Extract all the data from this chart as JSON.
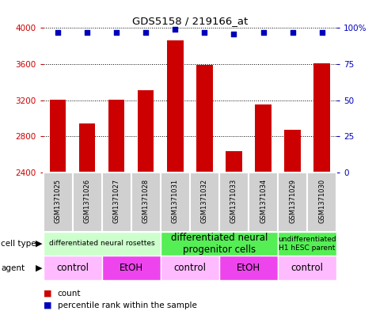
{
  "title": "GDS5158 / 219166_at",
  "samples": [
    "GSM1371025",
    "GSM1371026",
    "GSM1371027",
    "GSM1371028",
    "GSM1371031",
    "GSM1371032",
    "GSM1371033",
    "GSM1371034",
    "GSM1371029",
    "GSM1371030"
  ],
  "counts": [
    3210,
    2940,
    3210,
    3310,
    3860,
    3590,
    2640,
    3150,
    2870,
    3610
  ],
  "percentiles": [
    97,
    97,
    97,
    97,
    99,
    97,
    96,
    97,
    97,
    97
  ],
  "ylim_left": [
    2400,
    4000
  ],
  "ylim_right": [
    0,
    100
  ],
  "yticks_left": [
    2400,
    2800,
    3200,
    3600,
    4000
  ],
  "yticks_right": [
    0,
    25,
    50,
    75,
    100
  ],
  "bar_color": "#CC0000",
  "dot_color": "#0000BB",
  "cell_type_groups": [
    {
      "label": "differentiated neural rosettes",
      "start": 0,
      "end": 4,
      "color": "#ccffcc",
      "fontsize": 6.5
    },
    {
      "label": "differentiated neural\nprogenitor cells",
      "start": 4,
      "end": 8,
      "color": "#55ee55",
      "fontsize": 8.5
    },
    {
      "label": "undifferentiated\nH1 hESC parent",
      "start": 8,
      "end": 10,
      "color": "#55ee55",
      "fontsize": 6.5
    }
  ],
  "agent_groups": [
    {
      "label": "control",
      "start": 0,
      "end": 2,
      "color": "#ffbbff"
    },
    {
      "label": "EtOH",
      "start": 2,
      "end": 4,
      "color": "#ee44ee"
    },
    {
      "label": "control",
      "start": 4,
      "end": 6,
      "color": "#ffbbff"
    },
    {
      "label": "EtOH",
      "start": 6,
      "end": 8,
      "color": "#ee44ee"
    },
    {
      "label": "control",
      "start": 8,
      "end": 10,
      "color": "#ffbbff"
    }
  ],
  "legend_count_color": "#CC0000",
  "legend_dot_color": "#0000BB",
  "left_tick_color": "#CC0000",
  "right_tick_color": "#0000BB",
  "background_color": "#ffffff",
  "sample_box_color": "#d0d0d0",
  "sample_box_edge": "#ffffff"
}
